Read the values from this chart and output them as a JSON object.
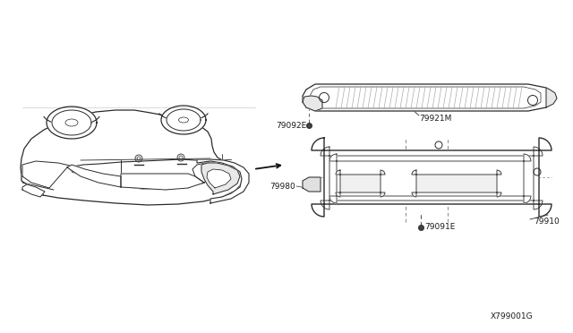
{
  "bg_color": "#ffffff",
  "fig_width": 6.4,
  "fig_height": 3.72,
  "dpi": 100,
  "line_color": "#2a2a2a",
  "text_color": "#1a1a1a",
  "small_font": 6.5,
  "label_79091E": "79091E",
  "label_79910": "79910",
  "label_79980": "79980",
  "label_79921M": "79921M",
  "label_79092E": "79092E",
  "label_ref": "X799001G",
  "car_color": "#ffffff",
  "part_color": "#ffffff"
}
